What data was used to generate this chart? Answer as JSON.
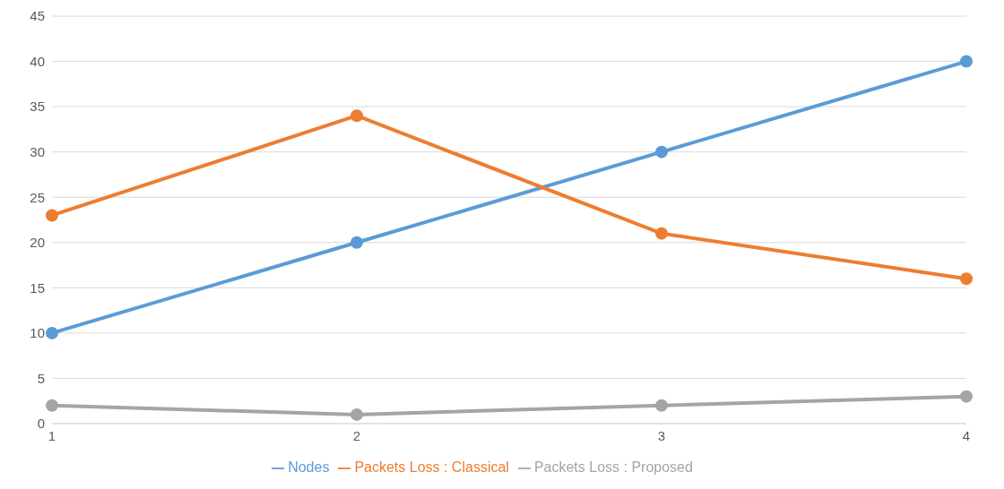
{
  "chart_data": {
    "type": "line",
    "categories": [
      "1",
      "2",
      "3",
      "4"
    ],
    "series": [
      {
        "name": "Nodes",
        "color": "#5b9bd5",
        "values": [
          10,
          20,
          30,
          40
        ]
      },
      {
        "name": "Packets Loss : Classical",
        "color": "#ed7d31",
        "values": [
          23,
          34,
          21,
          16
        ]
      },
      {
        "name": "Packets Loss : Proposed",
        "color": "#a5a5a5",
        "values": [
          2,
          1,
          2,
          3
        ]
      }
    ],
    "ylim": [
      0,
      45
    ],
    "yticks": [
      0,
      5,
      10,
      15,
      20,
      25,
      30,
      35,
      40,
      45
    ],
    "grid": "y",
    "legend": "bottom",
    "marker": "circle",
    "line_style": "solid"
  }
}
